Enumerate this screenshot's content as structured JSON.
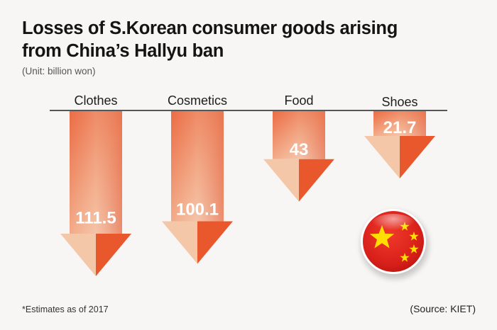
{
  "title": "Losses of S.Korean consumer goods arising from China’s Hallyu ban",
  "unit": "(Unit: billion won)",
  "footnote": "*Estimates as of 2017",
  "source": "(Source: KIET)",
  "icons": {
    "flag": "china-flag-icon"
  },
  "colors": {
    "arrow_dark": "#e8542c",
    "arrow_light": "#f4d8c2",
    "axis": "#222222"
  },
  "chart_data": {
    "type": "bar",
    "orientation": "downward-arrows",
    "categories": [
      "Clothes",
      "Cosmetics",
      "Food",
      "Shoes"
    ],
    "values": [
      111.5,
      100.1,
      43,
      21.7
    ],
    "value_labels": [
      "111.5",
      "100.1",
      "43",
      "21.7"
    ],
    "title": "Losses of S.Korean consumer goods arising from China’s Hallyu ban",
    "ylabel": "",
    "xlabel": ""
  }
}
